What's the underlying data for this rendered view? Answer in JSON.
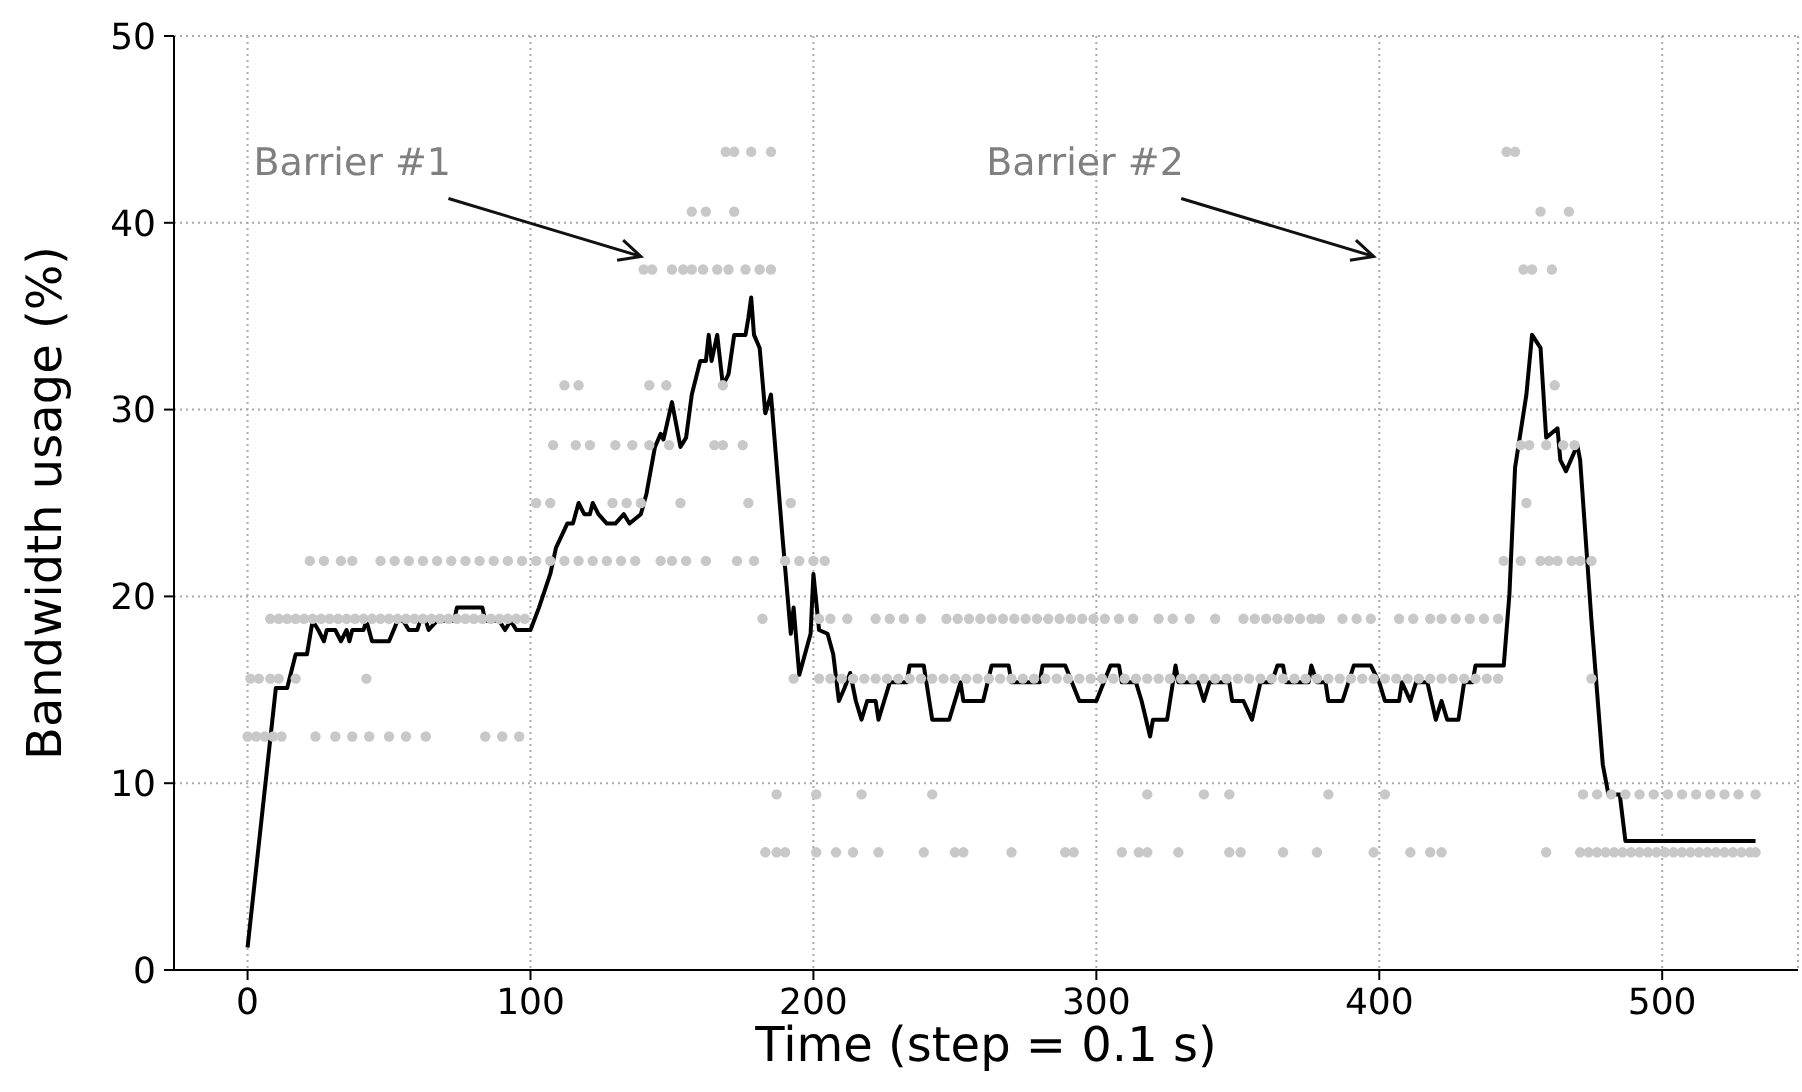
{
  "chart_data": {
    "type": "line",
    "xlabel": "Time (step = 0.1 s)",
    "ylabel": "Bandwidth usage (%)",
    "xlim": [
      -26,
      548
    ],
    "ylim": [
      0,
      50
    ],
    "xticks": [
      0,
      100,
      200,
      300,
      400,
      500
    ],
    "yticks": [
      0,
      10,
      20,
      30,
      40,
      50
    ],
    "grid": true,
    "annotations": [
      "Barrier #1",
      "Barrier #2"
    ],
    "series": [
      {
        "type": "scatter",
        "color": "#c8c8c8",
        "x": [
          169,
          172,
          178,
          185,
          445,
          448
        ],
        "values": [
          43.8,
          43.8,
          43.8,
          43.8,
          43.8,
          43.8
        ]
      },
      {
        "type": "scatter",
        "color": "#c8c8c8",
        "x": [
          157,
          162,
          172,
          457,
          467
        ],
        "values": [
          40.6,
          40.6,
          40.6,
          40.6,
          40.6
        ]
      },
      {
        "type": "scatter",
        "color": "#c8c8c8",
        "x": [
          140,
          143,
          150,
          154,
          157,
          161,
          166,
          170,
          176,
          181,
          185,
          451,
          454,
          461
        ],
        "values": [
          37.5,
          37.5,
          37.5,
          37.5,
          37.5,
          37.5,
          37.5,
          37.5,
          37.5,
          37.5,
          37.5,
          37.5,
          37.5,
          37.5
        ]
      },
      {
        "type": "scatter",
        "color": "#c8c8c8",
        "x": [
          112,
          117,
          142,
          148,
          168,
          462
        ],
        "values": [
          31.3,
          31.3,
          31.3,
          31.3,
          31.3,
          31.3
        ]
      },
      {
        "type": "scatter",
        "color": "#c8c8c8",
        "x": [
          108,
          116,
          121,
          130,
          136,
          142,
          149,
          165,
          168,
          175,
          450,
          453,
          459,
          465,
          469
        ],
        "values": [
          28.1,
          28.1,
          28.1,
          28.1,
          28.1,
          28.1,
          28.1,
          28.1,
          28.1,
          28.1,
          28.1,
          28.1,
          28.1,
          28.1,
          28.1
        ]
      },
      {
        "type": "scatter",
        "color": "#c8c8c8",
        "x": [
          102,
          107,
          129,
          134,
          139,
          153,
          177,
          192,
          452
        ],
        "values": [
          25,
          25,
          25,
          25,
          25,
          25,
          25,
          25,
          25
        ]
      },
      {
        "type": "scatter",
        "color": "#c8c8c8",
        "x": [
          22,
          27,
          33,
          37,
          47,
          52,
          57,
          62,
          67,
          72,
          77,
          82,
          87,
          92,
          97,
          102,
          107,
          112,
          117,
          122,
          127,
          132,
          137,
          146,
          150,
          155,
          162,
          173,
          179,
          190,
          195,
          200,
          204,
          444,
          450,
          457,
          460,
          463,
          468,
          471,
          475
        ],
        "values": [
          21.9,
          21.9,
          21.9,
          21.9,
          21.9,
          21.9,
          21.9,
          21.9,
          21.9,
          21.9,
          21.9,
          21.9,
          21.9,
          21.9,
          21.9,
          21.9,
          21.9,
          21.9,
          21.9,
          21.9,
          21.9,
          21.9,
          21.9,
          21.9,
          21.9,
          21.9,
          21.9,
          21.9,
          21.9,
          21.9,
          21.9,
          21.9,
          21.9,
          21.9,
          21.9,
          21.9,
          21.9,
          21.9,
          21.9,
          21.9,
          21.9
        ]
      },
      {
        "type": "scatter",
        "color": "#c8c8c8",
        "x": [
          8,
          11,
          14,
          17,
          20,
          23,
          26,
          29,
          32,
          35,
          38,
          41,
          44,
          47,
          50,
          53,
          56,
          59,
          62,
          65,
          68,
          71,
          74,
          77,
          80,
          83,
          86,
          89,
          92,
          95,
          98,
          182,
          202,
          206,
          212,
          222,
          227,
          232,
          238,
          247,
          251,
          255,
          259,
          263,
          267,
          271,
          275,
          279,
          283,
          287,
          291,
          295,
          299,
          303,
          308,
          313,
          322,
          327,
          333,
          342,
          352,
          356,
          360,
          364,
          368,
          372,
          376,
          379,
          387,
          392,
          397,
          407,
          412,
          418,
          422,
          427,
          432,
          437,
          442
        ],
        "values": [
          18.8,
          18.8,
          18.8,
          18.8,
          18.8,
          18.8,
          18.8,
          18.8,
          18.8,
          18.8,
          18.8,
          18.8,
          18.8,
          18.8,
          18.8,
          18.8,
          18.8,
          18.8,
          18.8,
          18.8,
          18.8,
          18.8,
          18.8,
          18.8,
          18.8,
          18.8,
          18.8,
          18.8,
          18.8,
          18.8,
          18.8,
          18.8,
          18.8,
          18.8,
          18.8,
          18.8,
          18.8,
          18.8,
          18.8,
          18.8,
          18.8,
          18.8,
          18.8,
          18.8,
          18.8,
          18.8,
          18.8,
          18.8,
          18.8,
          18.8,
          18.8,
          18.8,
          18.8,
          18.8,
          18.8,
          18.8,
          18.8,
          18.8,
          18.8,
          18.8,
          18.8,
          18.8,
          18.8,
          18.8,
          18.8,
          18.8,
          18.8,
          18.8,
          18.8,
          18.8,
          18.8,
          18.8,
          18.8,
          18.8,
          18.8,
          18.8,
          18.8,
          18.8,
          18.8
        ]
      },
      {
        "type": "scatter",
        "color": "#c8c8c8",
        "x": [
          1,
          4,
          8,
          11,
          17,
          42,
          193,
          202,
          206,
          210,
          214,
          218,
          222,
          226,
          230,
          234,
          238,
          242,
          246,
          250,
          254,
          258,
          262,
          266,
          270,
          274,
          278,
          282,
          286,
          290,
          294,
          298,
          302,
          306,
          310,
          314,
          318,
          322,
          326,
          330,
          334,
          338,
          342,
          346,
          350,
          354,
          358,
          362,
          366,
          370,
          374,
          378,
          382,
          386,
          390,
          394,
          398,
          402,
          406,
          410,
          414,
          418,
          422,
          426,
          430,
          434,
          438,
          442,
          475
        ],
        "values": [
          15.6,
          15.6,
          15.6,
          15.6,
          15.6,
          15.6,
          15.6,
          15.6,
          15.6,
          15.6,
          15.6,
          15.6,
          15.6,
          15.6,
          15.6,
          15.6,
          15.6,
          15.6,
          15.6,
          15.6,
          15.6,
          15.6,
          15.6,
          15.6,
          15.6,
          15.6,
          15.6,
          15.6,
          15.6,
          15.6,
          15.6,
          15.6,
          15.6,
          15.6,
          15.6,
          15.6,
          15.6,
          15.6,
          15.6,
          15.6,
          15.6,
          15.6,
          15.6,
          15.6,
          15.6,
          15.6,
          15.6,
          15.6,
          15.6,
          15.6,
          15.6,
          15.6,
          15.6,
          15.6,
          15.6,
          15.6,
          15.6,
          15.6,
          15.6,
          15.6,
          15.6,
          15.6,
          15.6,
          15.6,
          15.6,
          15.6,
          15.6,
          15.6,
          15.6
        ]
      },
      {
        "type": "scatter",
        "color": "#c8c8c8",
        "x": [
          0,
          3,
          6,
          9,
          12,
          24,
          31,
          37,
          43,
          50,
          56,
          63,
          84,
          90,
          96
        ],
        "values": [
          12.5,
          12.5,
          12.5,
          12.5,
          12.5,
          12.5,
          12.5,
          12.5,
          12.5,
          12.5,
          12.5,
          12.5,
          12.5,
          12.5,
          12.5
        ]
      },
      {
        "type": "scatter",
        "color": "#c8c8c8",
        "x": [
          187,
          201,
          217,
          242,
          318,
          338,
          347,
          382,
          402,
          472,
          477,
          482,
          487,
          492,
          497,
          502,
          507,
          512,
          517,
          522,
          527,
          533
        ],
        "values": [
          9.4,
          9.4,
          9.4,
          9.4,
          9.4,
          9.4,
          9.4,
          9.4,
          9.4,
          9.4,
          9.4,
          9.4,
          9.4,
          9.4,
          9.4,
          9.4,
          9.4,
          9.4,
          9.4,
          9.4,
          9.4,
          9.4
        ]
      },
      {
        "type": "scatter",
        "color": "#c8c8c8",
        "x": [
          183,
          187,
          190,
          201,
          208,
          214,
          223,
          239,
          250,
          253,
          270,
          289,
          292,
          309,
          315,
          318,
          329,
          347,
          351,
          366,
          378,
          398,
          411,
          418,
          422,
          459,
          471,
          474,
          477,
          480,
          483,
          486,
          489,
          492,
          495,
          498,
          501,
          504,
          507,
          510,
          513,
          516,
          519,
          522,
          525,
          528,
          531,
          533
        ],
        "values": [
          6.3,
          6.3,
          6.3,
          6.3,
          6.3,
          6.3,
          6.3,
          6.3,
          6.3,
          6.3,
          6.3,
          6.3,
          6.3,
          6.3,
          6.3,
          6.3,
          6.3,
          6.3,
          6.3,
          6.3,
          6.3,
          6.3,
          6.3,
          6.3,
          6.3,
          6.3,
          6.3,
          6.3,
          6.3,
          6.3,
          6.3,
          6.3,
          6.3,
          6.3,
          6.3,
          6.3,
          6.3,
          6.3,
          6.3,
          6.3,
          6.3,
          6.3,
          6.3,
          6.3,
          6.3,
          6.3,
          6.3,
          6.3
        ]
      },
      {
        "color": "#000000",
        "x": [
          0,
          10,
          14,
          17,
          21,
          23,
          25,
          27,
          28,
          31,
          33,
          35,
          36,
          37,
          41,
          42,
          44,
          50,
          53,
          55,
          57,
          60,
          61,
          63,
          64,
          67,
          73,
          74,
          83,
          84,
          89,
          91,
          93,
          95,
          100,
          103,
          107,
          109,
          113,
          115,
          117,
          119,
          121,
          122,
          124,
          127,
          130,
          133,
          135,
          139,
          141,
          144,
          146,
          147,
          150,
          153,
          155,
          157,
          160,
          162,
          163,
          164,
          166,
          168,
          170,
          172,
          176,
          177,
          178,
          179,
          181,
          183,
          185,
          189,
          192,
          193,
          195,
          199,
          200,
          202,
          205,
          207,
          209,
          211,
          213,
          215,
          217,
          219,
          222,
          223,
          225,
          227,
          233,
          234,
          239,
          242,
          248,
          250,
          252,
          253,
          260,
          263,
          269,
          270,
          280,
          281,
          289,
          294,
          300,
          305,
          308,
          309,
          314,
          316,
          319,
          320,
          325,
          328,
          329,
          336,
          338,
          340,
          347,
          348,
          352,
          355,
          358,
          362,
          364,
          366,
          367,
          375,
          376,
          378,
          381,
          382,
          387,
          391,
          397,
          400,
          402,
          407,
          408,
          411,
          413,
          417,
          420,
          422,
          424,
          428,
          430,
          433,
          434,
          444,
          446,
          448,
          452,
          454,
          457,
          459,
          463,
          464,
          466,
          470,
          471,
          475,
          479,
          481,
          485,
          487,
          533
        ],
        "values": [
          1.2,
          15.1,
          15.1,
          16.9,
          16.9,
          18.7,
          18.2,
          17.6,
          18.2,
          18.2,
          17.6,
          18.2,
          17.6,
          18.2,
          18.2,
          18.7,
          17.6,
          17.6,
          18.7,
          18.7,
          18.2,
          18.2,
          18.7,
          18.7,
          18.2,
          18.7,
          18.7,
          19.4,
          19.4,
          18.7,
          18.7,
          18.2,
          18.7,
          18.2,
          18.2,
          19.4,
          21.2,
          22.6,
          23.9,
          23.9,
          25,
          24.4,
          24.4,
          25,
          24.4,
          23.9,
          23.9,
          24.4,
          23.9,
          24.4,
          25.5,
          28,
          28.7,
          28.4,
          30.4,
          28,
          28.5,
          30.8,
          32.6,
          32.6,
          34,
          32.6,
          34,
          31.3,
          31.9,
          34,
          34,
          34.9,
          36,
          34,
          33.3,
          29.8,
          30.8,
          23.3,
          18,
          19.4,
          15.8,
          18,
          21.2,
          18.2,
          18,
          16.9,
          14.4,
          15.1,
          15.9,
          14.4,
          13.4,
          14.4,
          14.4,
          13.4,
          14.4,
          15.4,
          15.4,
          16.3,
          16.3,
          13.4,
          13.4,
          14.4,
          15.4,
          14.4,
          14.4,
          16.3,
          16.3,
          15.4,
          15.4,
          16.3,
          16.3,
          14.4,
          14.4,
          16.3,
          16.3,
          15.4,
          15.4,
          14.4,
          12.5,
          13.4,
          13.4,
          16.3,
          15.4,
          15.4,
          14.4,
          15.4,
          15.4,
          14.4,
          14.4,
          13.4,
          15.4,
          15.4,
          16.3,
          16.3,
          15.4,
          15.4,
          16.3,
          15.4,
          15.4,
          14.4,
          14.4,
          16.3,
          16.3,
          15.4,
          14.4,
          14.4,
          15.4,
          14.4,
          15.4,
          15.4,
          13.4,
          14.4,
          13.4,
          13.4,
          15.4,
          15.4,
          16.3,
          16.3,
          20.1,
          26.9,
          30.8,
          34,
          33.3,
          28.5,
          29,
          27.3,
          26.7,
          28.1,
          27.3,
          18.7,
          11,
          9.4,
          9.4,
          6.9,
          6.9
        ]
      }
    ]
  }
}
